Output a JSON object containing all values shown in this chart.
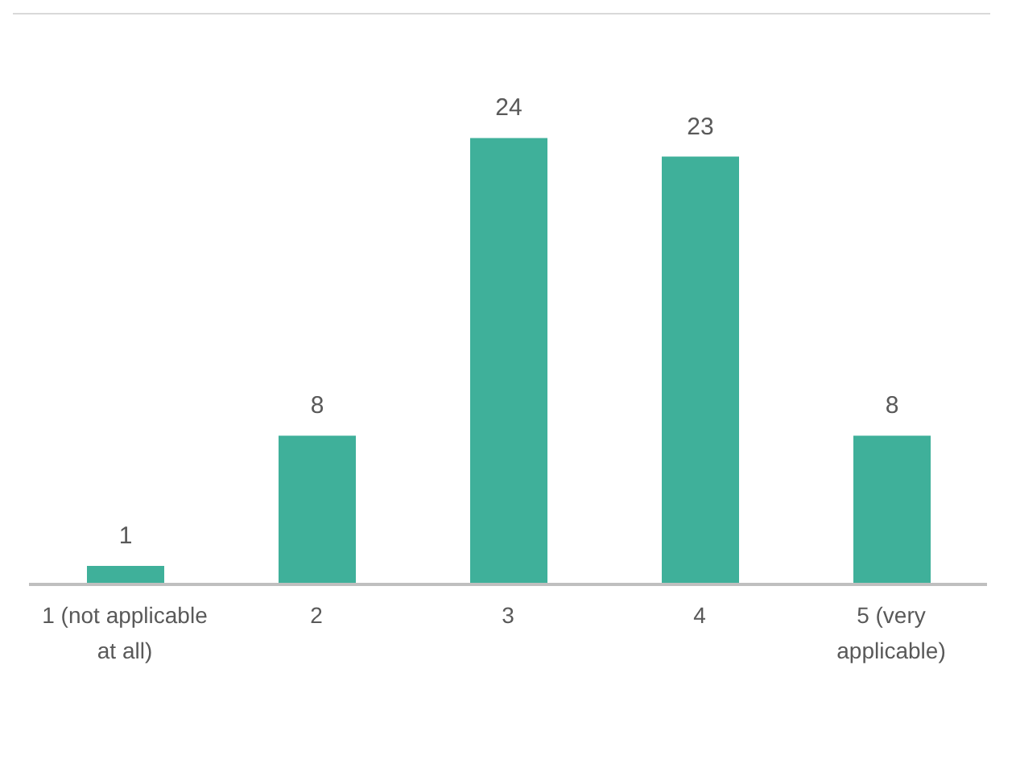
{
  "chart_data": {
    "type": "bar",
    "categories": [
      "1 (not applicable at all)",
      "2",
      "3",
      "4",
      "5 (very applicable)"
    ],
    "values": [
      1,
      8,
      24,
      23,
      8
    ],
    "color": "#3fb09a",
    "data_labels": true
  }
}
